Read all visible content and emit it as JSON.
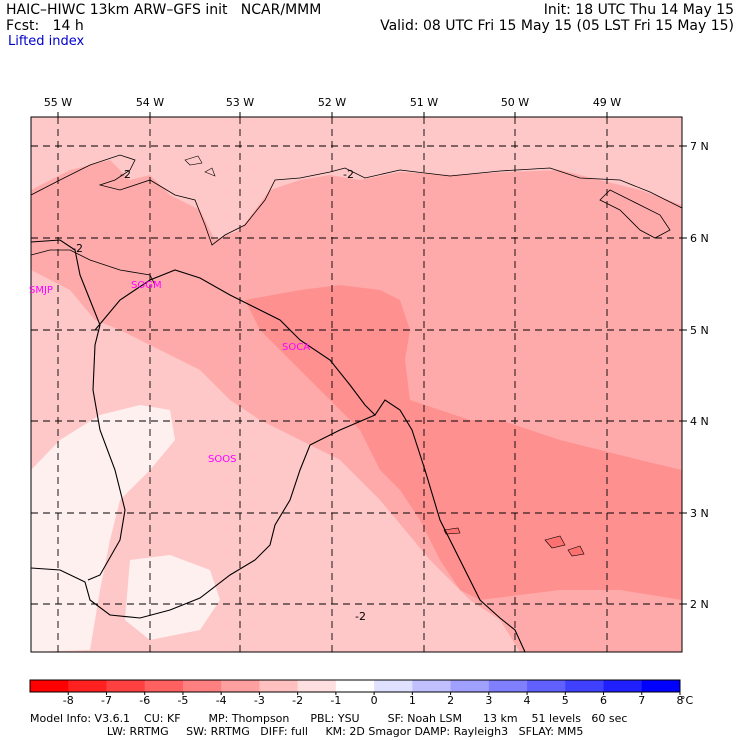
{
  "header": {
    "title": "HAIC–HIWC 13km ARW–GFS init   NCAR/MMM",
    "forecast": "Fcst:   14 h",
    "init": "Init: 18 UTC Thu 14 May 15",
    "valid": "Valid: 08 UTC Fri 15 May 15 (05 LST Fri 15 May 15)",
    "field": "Lifted index"
  },
  "map": {
    "lon_labels": [
      "55 W",
      "54 W",
      "53 W",
      "52 W",
      "51 W",
      "50 W",
      "49 W"
    ],
    "lat_labels": [
      "7 N",
      "6 N",
      "5 N",
      "4 N",
      "3 N",
      "2 N"
    ],
    "stations": [
      "SMJP",
      "SOGM",
      "SOCA",
      "SOOS"
    ],
    "contour_labels": [
      "-2",
      "-2",
      "-2",
      "-2"
    ]
  },
  "colorbar": {
    "ticks": [
      "-8",
      "-7",
      "-6",
      "-5",
      "-4",
      "-3",
      "-2",
      "-1",
      "0",
      "1",
      "2",
      "3",
      "4",
      "5",
      "6",
      "7",
      "8"
    ],
    "unit": "°C",
    "colors": [
      "#ff0000",
      "#ff2020",
      "#ff4040",
      "#ff6060",
      "#ff8080",
      "#ffa0a0",
      "#ffc0c0",
      "#ffe0e0",
      "#ffffff",
      "#e0e0ff",
      "#c0c0ff",
      "#a0a0ff",
      "#8080ff",
      "#6060ff",
      "#4040ff",
      "#2020ff",
      "#0000ff"
    ]
  },
  "model_info": {
    "line1": "Model Info: V3.6.1    CU: KF        MP: Thompson      PBL: YSU        SF: Noah LSM      13 km    51 levels   60 sec",
    "line2": "                      LW: RRTMG     SW: RRTMG   DIFF: full     KM: 2D Smagor DAMP: Rayleigh3   SFLAY: MM5"
  }
}
